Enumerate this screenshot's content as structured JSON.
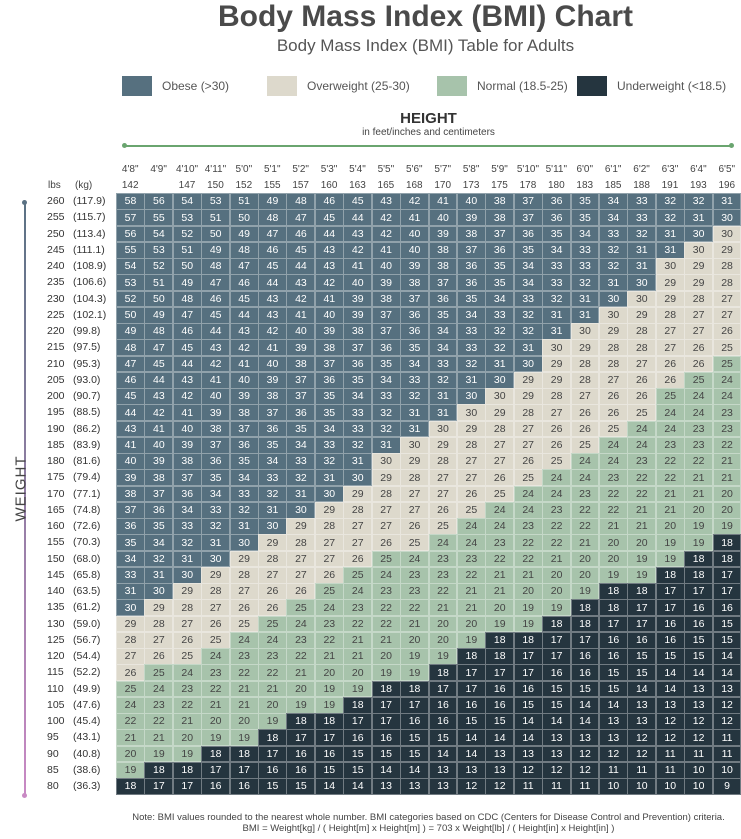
{
  "title": "Body Mass Index (BMI) Chart",
  "subtitle": "Body Mass Index (BMI) Table for Adults",
  "legend": [
    {
      "label": "Obese (>30)",
      "color": "#56707f"
    },
    {
      "label": "Overweight (25-30)",
      "color": "#ddd9cc"
    },
    {
      "label": "Normal (18.5-25)",
      "color": "#a7c3ab"
    },
    {
      "label": "Underweight (<18.5)",
      "color": "#25353f"
    }
  ],
  "height_label": "HEIGHT",
  "height_sub": "in feet/inches and centimeters",
  "weight_label": "WEIGHT",
  "lbs_header": "lbs",
  "kg_header": "(kg)",
  "note_line1": "Note: BMI values rounded to the nearest whole number. BMI categories based on CDC (Centers for Disease Control and Prevention) criteria.",
  "note_line2": "BMI = Weight[kg] / ( Height[m] x Height[m] ) = 703 x Weight[lb] / ( Height[in] x Height[in] )",
  "chart_data": {
    "type": "table",
    "heights": [
      "4'8\"",
      "4'9\"",
      "4'10\"",
      "4'11\"",
      "5'0\"",
      "5'1\"",
      "5'2\"",
      "5'3\"",
      "5'4\"",
      "5'5\"",
      "5'6\"",
      "5'7\"",
      "5'8\"",
      "5'9\"",
      "5'10\"",
      "5'11\"",
      "6'0\"",
      "6'1\"",
      "6'2\"",
      "6'3\"",
      "6'4\"",
      "6'5\""
    ],
    "cm": [
      "142",
      "",
      "147",
      "150",
      "152",
      "155",
      "157",
      "160",
      "163",
      "165",
      "168",
      "170",
      "173",
      "175",
      "178",
      "180",
      "183",
      "185",
      "188",
      "191",
      "193",
      "196"
    ],
    "weights_lbs": [
      "260",
      "255",
      "250",
      "245",
      "240",
      "235",
      "230",
      "225",
      "220",
      "215",
      "210",
      "205",
      "200",
      "195",
      "190",
      "185",
      "180",
      "175",
      "170",
      "165",
      "160",
      "155",
      "150",
      "145",
      "140",
      "135",
      "130",
      "125",
      "120",
      "115",
      "110",
      "105",
      "100",
      "95",
      "90",
      "85",
      "80"
    ],
    "weights_kg": [
      "(117.9)",
      "(115.7)",
      "(113.4)",
      "(111.1)",
      "(108.9)",
      "(106.6)",
      "(104.3)",
      "(102.1)",
      "(99.8)",
      "(97.5)",
      "(95.3)",
      "(93.0)",
      "(90.7)",
      "(88.5)",
      "(86.2)",
      "(83.9)",
      "(81.6)",
      "(79.4)",
      "(77.1)",
      "(74.8)",
      "(72.6)",
      "(70.3)",
      "(68.0)",
      "(65.8)",
      "(63.5)",
      "(61.2)",
      "(59.0)",
      "(56.7)",
      "(54.4)",
      "(52.2)",
      "(49.9)",
      "(47.6)",
      "(45.4)",
      "(43.1)",
      "(40.8)",
      "(38.6)",
      "(36.3)"
    ],
    "bmi": [
      [
        58,
        56,
        54,
        53,
        51,
        49,
        48,
        46,
        45,
        43,
        42,
        41,
        40,
        38,
        37,
        36,
        35,
        34,
        33,
        32,
        32,
        31
      ],
      [
        57,
        55,
        53,
        51,
        50,
        48,
        47,
        45,
        44,
        42,
        41,
        40,
        39,
        38,
        37,
        36,
        35,
        34,
        33,
        32,
        31,
        30
      ],
      [
        56,
        54,
        52,
        50,
        49,
        47,
        46,
        44,
        43,
        42,
        40,
        39,
        38,
        37,
        36,
        35,
        34,
        33,
        32,
        31,
        30,
        30
      ],
      [
        55,
        53,
        51,
        49,
        48,
        46,
        45,
        43,
        42,
        41,
        40,
        38,
        37,
        36,
        35,
        34,
        33,
        32,
        31,
        31,
        30,
        29
      ],
      [
        54,
        52,
        50,
        48,
        47,
        45,
        44,
        43,
        41,
        40,
        39,
        38,
        36,
        35,
        34,
        33,
        33,
        32,
        31,
        30,
        29,
        28
      ],
      [
        53,
        51,
        49,
        47,
        46,
        44,
        43,
        42,
        40,
        39,
        38,
        37,
        36,
        35,
        34,
        33,
        32,
        31,
        30,
        29,
        29,
        28
      ],
      [
        52,
        50,
        48,
        46,
        45,
        43,
        42,
        41,
        39,
        38,
        37,
        36,
        35,
        34,
        33,
        32,
        31,
        30,
        30,
        29,
        28,
        27
      ],
      [
        50,
        49,
        47,
        45,
        44,
        43,
        41,
        40,
        39,
        37,
        36,
        35,
        34,
        33,
        32,
        31,
        31,
        30,
        29,
        28,
        27,
        27
      ],
      [
        49,
        48,
        46,
        44,
        43,
        42,
        40,
        39,
        38,
        37,
        36,
        34,
        33,
        32,
        32,
        31,
        30,
        29,
        28,
        27,
        27,
        26
      ],
      [
        48,
        47,
        45,
        43,
        42,
        41,
        39,
        38,
        37,
        36,
        35,
        34,
        33,
        32,
        31,
        30,
        29,
        28,
        28,
        27,
        26,
        25
      ],
      [
        47,
        45,
        44,
        42,
        41,
        40,
        38,
        37,
        36,
        35,
        34,
        33,
        32,
        31,
        30,
        29,
        28,
        28,
        27,
        26,
        26,
        25
      ],
      [
        46,
        44,
        43,
        41,
        40,
        39,
        37,
        36,
        35,
        34,
        33,
        32,
        31,
        30,
        29,
        29,
        28,
        27,
        26,
        26,
        25,
        24
      ],
      [
        45,
        43,
        42,
        40,
        39,
        38,
        37,
        35,
        34,
        33,
        32,
        31,
        30,
        30,
        29,
        28,
        27,
        26,
        26,
        25,
        24,
        24
      ],
      [
        44,
        42,
        41,
        39,
        38,
        37,
        36,
        35,
        33,
        32,
        31,
        31,
        30,
        29,
        28,
        27,
        26,
        26,
        25,
        24,
        24,
        23
      ],
      [
        43,
        41,
        40,
        38,
        37,
        36,
        35,
        34,
        33,
        32,
        31,
        30,
        29,
        28,
        27,
        26,
        26,
        25,
        24,
        24,
        23,
        23
      ],
      [
        41,
        40,
        39,
        37,
        36,
        35,
        34,
        33,
        32,
        31,
        30,
        29,
        28,
        27,
        27,
        26,
        25,
        24,
        24,
        23,
        23,
        22
      ],
      [
        40,
        39,
        38,
        36,
        35,
        34,
        33,
        32,
        31,
        30,
        29,
        28,
        27,
        27,
        26,
        25,
        24,
        24,
        23,
        22,
        22,
        21
      ],
      [
        39,
        38,
        37,
        35,
        34,
        33,
        32,
        31,
        30,
        29,
        28,
        27,
        27,
        26,
        25,
        24,
        24,
        23,
        22,
        22,
        21,
        21
      ],
      [
        38,
        37,
        36,
        34,
        33,
        32,
        31,
        30,
        29,
        28,
        27,
        27,
        26,
        25,
        24,
        24,
        23,
        22,
        22,
        21,
        21,
        20
      ],
      [
        37,
        36,
        34,
        33,
        32,
        31,
        30,
        29,
        28,
        27,
        27,
        26,
        25,
        24,
        24,
        23,
        22,
        22,
        21,
        21,
        20,
        20
      ],
      [
        36,
        35,
        33,
        32,
        31,
        30,
        29,
        28,
        27,
        27,
        26,
        25,
        24,
        24,
        23,
        22,
        22,
        21,
        21,
        20,
        19,
        19
      ],
      [
        35,
        34,
        32,
        31,
        30,
        29,
        28,
        27,
        27,
        26,
        25,
        24,
        24,
        23,
        22,
        22,
        21,
        20,
        20,
        19,
        19,
        18
      ],
      [
        34,
        32,
        31,
        30,
        29,
        28,
        27,
        27,
        26,
        25,
        24,
        23,
        23,
        22,
        22,
        21,
        20,
        20,
        19,
        19,
        18,
        18
      ],
      [
        33,
        31,
        30,
        29,
        28,
        27,
        27,
        26,
        25,
        24,
        23,
        23,
        22,
        21,
        21,
        20,
        20,
        19,
        19,
        18,
        18,
        17
      ],
      [
        31,
        30,
        29,
        28,
        27,
        26,
        26,
        25,
        24,
        23,
        23,
        22,
        21,
        21,
        20,
        20,
        19,
        18,
        18,
        17,
        17,
        17
      ],
      [
        30,
        29,
        28,
        27,
        26,
        26,
        25,
        24,
        23,
        22,
        22,
        21,
        21,
        20,
        19,
        19,
        18,
        18,
        17,
        17,
        16,
        16
      ],
      [
        29,
        28,
        27,
        26,
        25,
        25,
        24,
        23,
        22,
        22,
        21,
        20,
        20,
        19,
        19,
        18,
        18,
        17,
        17,
        16,
        16,
        15
      ],
      [
        28,
        27,
        26,
        25,
        24,
        24,
        23,
        22,
        21,
        21,
        20,
        20,
        19,
        18,
        18,
        17,
        17,
        16,
        16,
        16,
        15,
        15
      ],
      [
        27,
        26,
        25,
        24,
        23,
        23,
        22,
        21,
        21,
        20,
        19,
        19,
        18,
        18,
        17,
        17,
        16,
        16,
        15,
        15,
        15,
        14
      ],
      [
        26,
        25,
        24,
        23,
        22,
        22,
        21,
        20,
        20,
        19,
        19,
        18,
        17,
        17,
        17,
        16,
        16,
        15,
        15,
        14,
        14,
        14
      ],
      [
        25,
        24,
        23,
        22,
        21,
        21,
        20,
        19,
        19,
        18,
        18,
        17,
        17,
        16,
        16,
        15,
        15,
        15,
        14,
        14,
        13,
        13
      ],
      [
        24,
        23,
        22,
        21,
        21,
        20,
        19,
        19,
        18,
        17,
        17,
        16,
        16,
        16,
        15,
        15,
        14,
        14,
        13,
        13,
        13,
        12
      ],
      [
        22,
        22,
        21,
        20,
        20,
        19,
        18,
        18,
        17,
        17,
        16,
        16,
        15,
        15,
        14,
        14,
        14,
        13,
        13,
        12,
        12,
        12
      ],
      [
        21,
        21,
        20,
        19,
        19,
        18,
        17,
        17,
        16,
        16,
        15,
        15,
        14,
        14,
        14,
        13,
        13,
        13,
        12,
        12,
        12,
        11
      ],
      [
        20,
        19,
        19,
        18,
        18,
        17,
        16,
        16,
        15,
        15,
        15,
        14,
        14,
        13,
        13,
        13,
        12,
        12,
        12,
        11,
        11,
        11
      ],
      [
        19,
        18,
        18,
        17,
        17,
        16,
        16,
        15,
        15,
        14,
        14,
        13,
        13,
        13,
        12,
        12,
        12,
        11,
        11,
        11,
        10,
        10
      ],
      [
        18,
        17,
        17,
        16,
        16,
        15,
        15,
        14,
        14,
        13,
        13,
        13,
        12,
        12,
        11,
        11,
        11,
        10,
        10,
        10,
        10,
        9
      ]
    ]
  }
}
